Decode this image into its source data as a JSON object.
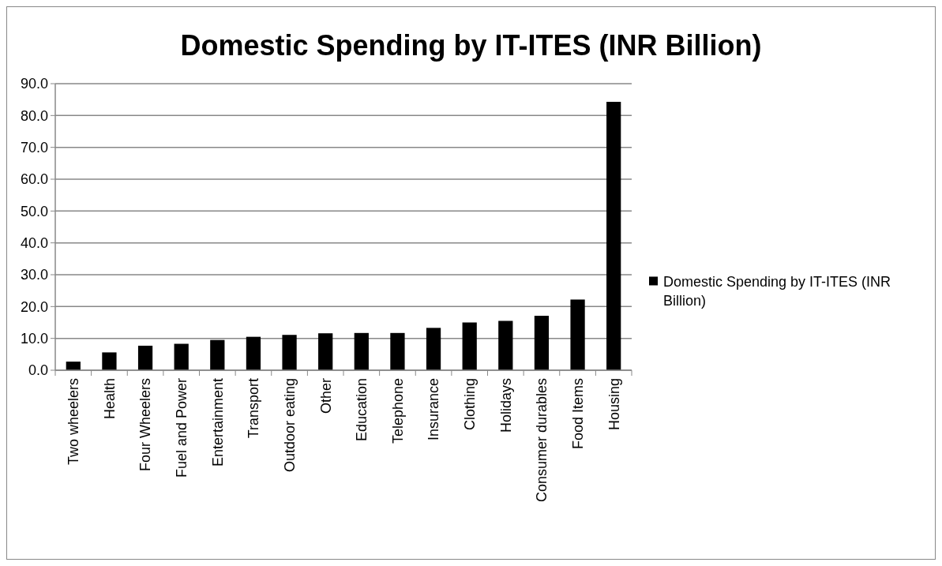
{
  "chart_data": {
    "type": "bar",
    "title": "Domestic Spending by IT-ITES (INR Billion)",
    "categories": [
      "Two wheelers",
      "Health",
      "Four Wheelers",
      "Fuel and Power",
      "Entertainment",
      "Transport",
      "Outdoor eating",
      "Other",
      "Education",
      "Telephone",
      "Insurance",
      "Clothing",
      "Holidays",
      "Consumer durables",
      "Food Items",
      "Housing"
    ],
    "series": [
      {
        "name": "Domestic Spending by IT-ITES (INR Billion)",
        "color": "#000000",
        "values": [
          2.7,
          5.6,
          7.7,
          8.3,
          9.5,
          10.5,
          11.1,
          11.6,
          11.7,
          11.7,
          13.3,
          15.0,
          15.5,
          17.1,
          22.2,
          84.3
        ]
      }
    ],
    "ylim": [
      0,
      90
    ],
    "yticks": [
      {
        "value": 0,
        "label": "0.0"
      },
      {
        "value": 10,
        "label": "10.0"
      },
      {
        "value": 20,
        "label": "20.0"
      },
      {
        "value": 30,
        "label": "30.0"
      },
      {
        "value": 40,
        "label": "40.0"
      },
      {
        "value": 50,
        "label": "50.0"
      },
      {
        "value": 60,
        "label": "60.0"
      },
      {
        "value": 70,
        "label": "70.0"
      },
      {
        "value": 80,
        "label": "80.0"
      },
      {
        "value": 90,
        "label": "90.0"
      }
    ],
    "grid": "y",
    "legend": "right"
  }
}
